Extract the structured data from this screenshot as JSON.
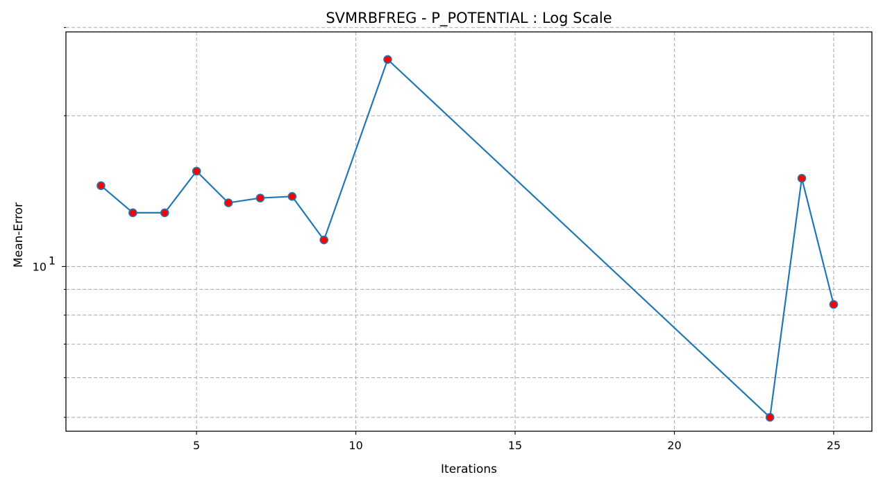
{
  "chart_data": {
    "type": "line",
    "title": "SVMRBFREG - P_POTENTIAL : Log Scale",
    "xlabel": "Iterations",
    "ylabel": "Mean-Error",
    "yscale": "log",
    "xlim": [
      0.9,
      26.2
    ],
    "ylim": [
      4.69,
      29.4
    ],
    "xticks": [
      5,
      10,
      15,
      20,
      25
    ],
    "xtick_labels": [
      "5",
      "10",
      "15",
      "20",
      "25"
    ],
    "yticks_major": [
      10
    ],
    "ytick_major_labels": [
      {
        "base": "10",
        "exp": "1"
      }
    ],
    "yticks_minor": [
      5,
      6,
      7,
      8,
      9,
      20,
      30
    ],
    "grid": true,
    "legend": "none",
    "colors": {
      "line": "#1f77b4",
      "marker_fill": "#ff0000",
      "marker_edge": "#1f77b4"
    },
    "series": [
      {
        "x": [
          2,
          3,
          4,
          5,
          6,
          7,
          8,
          9,
          11,
          23,
          24,
          25
        ],
        "y": [
          14.5,
          12.8,
          12.8,
          15.5,
          13.4,
          13.7,
          13.8,
          11.3,
          25.9,
          5.0,
          15.0,
          8.4
        ]
      }
    ]
  }
}
